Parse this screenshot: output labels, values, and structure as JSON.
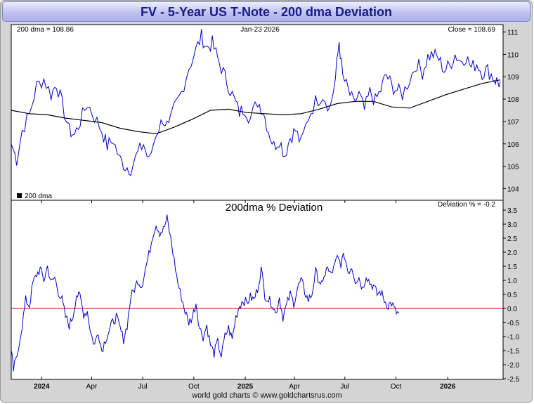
{
  "title": "FV  -  5-Year US T-Note - 200 dma Deviation",
  "footer": "world gold charts © www.goldchartsrus.com",
  "colors": {
    "price": "#0000cc",
    "dma": "#000000",
    "deviation": "#0000cc",
    "zero_line": "#cc0000"
  },
  "chart_data": [
    {
      "type": "line",
      "panel": "price",
      "label_dma": "200 dma = 108.86",
      "label_date": "Jan-23  2026",
      "label_close": "Close = 108.69",
      "legend": "200 dma",
      "ylim": [
        103.7,
        111.3
      ],
      "yticks": [
        "104",
        "105",
        "106",
        "107",
        "108",
        "109",
        "110",
        "111"
      ],
      "series": [
        {
          "name": "Price",
          "style": "ohlc",
          "points": [
            [
              0,
              106.0
            ],
            [
              1.5,
              105.3
            ],
            [
              3,
              106.6
            ],
            [
              5,
              107.3
            ],
            [
              7,
              108.6
            ],
            [
              9,
              108.9
            ],
            [
              11,
              108.2
            ],
            [
              12.5,
              108.7
            ],
            [
              14,
              107.8
            ],
            [
              16,
              106.6
            ],
            [
              17.5,
              106.4
            ],
            [
              19,
              107.0
            ],
            [
              21,
              107.8
            ],
            [
              23,
              107.2
            ],
            [
              25,
              106.6
            ],
            [
              26.5,
              105.9
            ],
            [
              28,
              106.2
            ],
            [
              30,
              105.3
            ],
            [
              31.5,
              105.0
            ],
            [
              33,
              104.9
            ],
            [
              35,
              105.6
            ],
            [
              36.5,
              106.0
            ],
            [
              38,
              105.2
            ],
            [
              40,
              106.5
            ],
            [
              42,
              107.1
            ],
            [
              43.5,
              106.7
            ],
            [
              45,
              107.6
            ],
            [
              47,
              108.3
            ],
            [
              49,
              109.4
            ],
            [
              51,
              110.2
            ],
            [
              52.5,
              110.8
            ],
            [
              54,
              110.3
            ],
            [
              55.5,
              110.5
            ],
            [
              57,
              109.8
            ],
            [
              58.5,
              109.2
            ],
            [
              60,
              108.6
            ],
            [
              61.5,
              108.0
            ],
            [
              63,
              107.4
            ],
            [
              64.5,
              107.6
            ],
            [
              66,
              107.1
            ],
            [
              68,
              107.9
            ],
            [
              69.5,
              107.5
            ],
            [
              71,
              106.6
            ],
            [
              72.5,
              105.9
            ],
            [
              74,
              106.2
            ],
            [
              75.5,
              105.5
            ],
            [
              77,
              106.3
            ],
            [
              78.5,
              106.6
            ],
            [
              80,
              106.0
            ],
            [
              82,
              107.2
            ],
            [
              84,
              107.9
            ],
            [
              86,
              108.2
            ],
            [
              88,
              107.6
            ],
            [
              89.5,
              108.9
            ],
            [
              90.5,
              110.6
            ],
            [
              91.5,
              109.0
            ],
            [
              93,
              108.4
            ],
            [
              94.5,
              107.8
            ],
            [
              96,
              108.2
            ],
            [
              97.5,
              107.5
            ],
            [
              99,
              108.3
            ],
            [
              100.5,
              107.9
            ],
            [
              102,
              108.4
            ],
            [
              103.5,
              109.1
            ],
            [
              105,
              108.6
            ],
            [
              106.5,
              108.4
            ],
            [
              108,
              108.2
            ],
            [
              110,
              108.9
            ],
            [
              112,
              109.6
            ],
            [
              113.5,
              109.2
            ],
            [
              115,
              109.9
            ],
            [
              116.5,
              110.0
            ],
            [
              118,
              109.8
            ],
            [
              119.5,
              109.3
            ],
            [
              121,
              109.5
            ],
            [
              122.5,
              110.0
            ],
            [
              124,
              109.7
            ],
            [
              125.5,
              109.9
            ],
            [
              127,
              109.4
            ],
            [
              128.5,
              109.6
            ],
            [
              130,
              109.2
            ],
            [
              131.5,
              109.3
            ],
            [
              133,
              109.0
            ],
            [
              134,
              108.8
            ],
            [
              135,
              108.69
            ]
          ]
        },
        {
          "name": "200 dma",
          "style": "line",
          "points": [
            [
              0,
              107.5
            ],
            [
              5,
              107.35
            ],
            [
              10,
              107.3
            ],
            [
              15,
              107.15
            ],
            [
              20,
              107.05
            ],
            [
              25,
              106.95
            ],
            [
              30,
              106.7
            ],
            [
              35,
              106.55
            ],
            [
              40,
              106.45
            ],
            [
              45,
              106.75
            ],
            [
              50,
              107.1
            ],
            [
              55,
              107.5
            ],
            [
              60,
              107.55
            ],
            [
              65,
              107.4
            ],
            [
              70,
              107.35
            ],
            [
              75,
              107.3
            ],
            [
              80,
              107.35
            ],
            [
              85,
              107.55
            ],
            [
              90,
              107.8
            ],
            [
              95,
              107.9
            ],
            [
              100,
              107.9
            ],
            [
              105,
              107.65
            ],
            [
              110,
              107.6
            ],
            [
              115,
              107.9
            ],
            [
              120,
              108.2
            ],
            [
              125,
              108.45
            ],
            [
              130,
              108.7
            ],
            [
              135,
              108.86
            ]
          ]
        }
      ]
    },
    {
      "type": "line",
      "panel": "deviation",
      "title": "200dma  %  Deviation",
      "label_dev": "Deviation % = -0.2",
      "ylim": [
        -2.5,
        3.5
      ],
      "yticks": [
        "3.5",
        "3.0",
        "2.5",
        "2.0",
        "1.5",
        "1.0",
        "0.5",
        "0.0",
        "-0.5",
        "-1.0",
        "-1.5",
        "-2.0",
        "-2.5"
      ],
      "reference_line": 0,
      "xlim": [
        0,
        135
      ],
      "xticks": [
        {
          "label": "2024",
          "x": 8.4,
          "bold": true
        },
        {
          "label": "Apr",
          "x": 22.2
        },
        {
          "label": "Jul",
          "x": 36.3
        },
        {
          "label": "Oct",
          "x": 50.4
        },
        {
          "label": "2025",
          "x": 64.6,
          "bold": true
        },
        {
          "label": "Apr",
          "x": 78.2
        },
        {
          "label": "Jul",
          "x": 92.1
        },
        {
          "label": "Oct",
          "x": 106.2
        },
        {
          "label": "2026",
          "x": 120.5,
          "bold": true
        }
      ],
      "series": [
        {
          "name": "Deviation %",
          "points": [
            [
              0,
              -1.5
            ],
            [
              0.6,
              -2.2
            ],
            [
              1.5,
              -1.7
            ],
            [
              3,
              -0.6
            ],
            [
              4,
              0.3
            ],
            [
              5,
              0.1
            ],
            [
              6,
              0.9
            ],
            [
              7,
              1.2
            ],
            [
              8,
              1.4
            ],
            [
              9,
              1.0
            ],
            [
              10,
              1.5
            ],
            [
              11,
              0.9
            ],
            [
              12,
              1.1
            ],
            [
              13,
              0.6
            ],
            [
              14,
              0.3
            ],
            [
              15,
              -0.3
            ],
            [
              16,
              -0.6
            ],
            [
              17,
              -0.3
            ],
            [
              18,
              0.5
            ],
            [
              19,
              0.4
            ],
            [
              20,
              -0.2
            ],
            [
              21,
              -0.1
            ],
            [
              22,
              -0.9
            ],
            [
              23,
              -1.3
            ],
            [
              24,
              -0.8
            ],
            [
              25,
              -1.5
            ],
            [
              26,
              -1.1
            ],
            [
              27,
              -0.8
            ],
            [
              28,
              -0.5
            ],
            [
              29,
              -0.3
            ],
            [
              30,
              -0.7
            ],
            [
              31,
              -1.1
            ],
            [
              32,
              -0.6
            ],
            [
              33,
              0.4
            ],
            [
              34,
              0.7
            ],
            [
              35,
              1.0
            ],
            [
              36,
              0.8
            ],
            [
              37,
              1.4
            ],
            [
              38,
              1.9
            ],
            [
              39,
              2.6
            ],
            [
              40,
              3.0
            ],
            [
              41,
              2.7
            ],
            [
              42,
              2.8
            ],
            [
              43,
              3.2
            ],
            [
              44,
              2.5
            ],
            [
              45,
              1.7
            ],
            [
              46,
              0.9
            ],
            [
              47,
              0.4
            ],
            [
              48,
              -0.1
            ],
            [
              49,
              -0.5
            ],
            [
              50,
              -0.3
            ],
            [
              51,
              0.2
            ],
            [
              52,
              -0.7
            ],
            [
              53,
              -1.0
            ],
            [
              54,
              -0.6
            ],
            [
              55,
              -1.3
            ],
            [
              56,
              -1.6
            ],
            [
              57,
              -1.2
            ],
            [
              58,
              -1.7
            ],
            [
              59,
              -1.0
            ],
            [
              60,
              -0.7
            ],
            [
              61,
              -1.1
            ],
            [
              62,
              -0.3
            ],
            [
              63,
              0.1
            ],
            [
              64,
              0.3
            ],
            [
              65,
              0.2
            ],
            [
              66,
              0.4
            ],
            [
              67,
              0.3
            ],
            [
              68,
              0.7
            ],
            [
              69,
              1.4
            ],
            [
              70,
              0.5
            ],
            [
              71,
              0.3
            ],
            [
              72,
              0.2
            ],
            [
              73,
              -0.2
            ],
            [
              74,
              0.4
            ],
            [
              75,
              -0.3
            ],
            [
              76,
              0.1
            ],
            [
              77,
              0.5
            ],
            [
              78,
              0.2
            ],
            [
              79,
              0.7
            ],
            [
              80,
              1.0
            ],
            [
              81,
              0.6
            ],
            [
              82,
              0.3
            ],
            [
              83,
              0.5
            ],
            [
              84,
              1.3
            ],
            [
              85,
              1.0
            ],
            [
              86,
              0.8
            ],
            [
              87,
              1.5
            ],
            [
              88,
              1.2
            ],
            [
              89,
              1.4
            ],
            [
              90,
              1.8
            ],
            [
              91,
              1.6
            ],
            [
              92,
              1.9
            ],
            [
              93,
              1.3
            ],
            [
              94,
              1.5
            ],
            [
              95,
              1.0
            ],
            [
              96,
              1.1
            ],
            [
              97,
              0.7
            ],
            [
              98,
              1.2
            ],
            [
              99,
              0.9
            ],
            [
              100,
              0.8
            ],
            [
              101,
              0.5
            ],
            [
              102,
              0.6
            ],
            [
              103,
              0.3
            ],
            [
              104,
              0.1
            ],
            [
              105,
              0.2
            ],
            [
              106,
              -0.1
            ],
            [
              107,
              -0.2
            ]
          ]
        }
      ]
    }
  ]
}
